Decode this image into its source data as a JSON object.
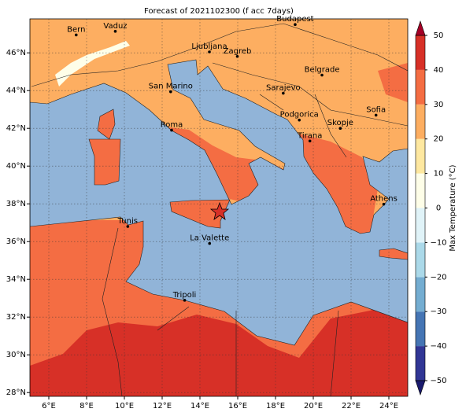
{
  "map": {
    "title": "Forecast of 2021102300 (f acc 7days)",
    "xlim": [
      5,
      25
    ],
    "ylim": [
      27.8,
      47.8
    ],
    "xticks": [
      {
        "value": 6,
        "label": "6°E"
      },
      {
        "value": 8,
        "label": "8°E"
      },
      {
        "value": 10,
        "label": "10°E"
      },
      {
        "value": 12,
        "label": "12°E"
      },
      {
        "value": 14,
        "label": "14°E"
      },
      {
        "value": 16,
        "label": "16°E"
      },
      {
        "value": 18,
        "label": "18°E"
      },
      {
        "value": 20,
        "label": "20°E"
      },
      {
        "value": 22,
        "label": "22°E"
      },
      {
        "value": 24,
        "label": "24°E"
      }
    ],
    "yticks": [
      {
        "value": 28,
        "label": "28°N"
      },
      {
        "value": 30,
        "label": "30°N"
      },
      {
        "value": 32,
        "label": "32°N"
      },
      {
        "value": 34,
        "label": "34°N"
      },
      {
        "value": 36,
        "label": "36°N"
      },
      {
        "value": 38,
        "label": "38°N"
      },
      {
        "value": 40,
        "label": "40°N"
      },
      {
        "value": 42,
        "label": "42°N"
      },
      {
        "value": 44,
        "label": "44°N"
      },
      {
        "value": 46,
        "label": "46°N"
      }
    ],
    "grid": true,
    "cities": [
      {
        "name": "Bern",
        "lon": 7.45,
        "lat": 46.95
      },
      {
        "name": "Vaduz",
        "lon": 9.52,
        "lat": 47.14
      },
      {
        "name": "Budapest",
        "lon": 19.04,
        "lat": 47.5
      },
      {
        "name": "Ljubljana",
        "lon": 14.5,
        "lat": 46.05
      },
      {
        "name": "Zagreb",
        "lon": 15.98,
        "lat": 45.81
      },
      {
        "name": "Belgrade",
        "lon": 20.46,
        "lat": 44.82
      },
      {
        "name": "San Marino",
        "lon": 12.45,
        "lat": 43.94
      },
      {
        "name": "Sarajevo",
        "lon": 18.41,
        "lat": 43.86
      },
      {
        "name": "Roma",
        "lon": 12.5,
        "lat": 41.9
      },
      {
        "name": "Podgorica",
        "lon": 19.26,
        "lat": 42.44
      },
      {
        "name": "Sofia",
        "lon": 23.32,
        "lat": 42.7
      },
      {
        "name": "Skopje",
        "lon": 21.43,
        "lat": 42.0
      },
      {
        "name": "Tirana",
        "lon": 19.82,
        "lat": 41.33
      },
      {
        "name": "Athens",
        "lon": 23.73,
        "lat": 37.98
      },
      {
        "name": "Tunis",
        "lon": 10.18,
        "lat": 36.8
      },
      {
        "name": "La Valette",
        "lon": 14.51,
        "lat": 35.9
      },
      {
        "name": "Tripoli",
        "lon": 13.19,
        "lat": 32.89
      }
    ],
    "colorbar": {
      "label": "Max Temperature (°C)",
      "lim": [
        -50,
        50
      ],
      "ticks": [
        {
          "value": -50,
          "label": "−50"
        },
        {
          "value": -40,
          "label": "−40"
        },
        {
          "value": -30,
          "label": "−30"
        },
        {
          "value": -20,
          "label": "−20"
        },
        {
          "value": -10,
          "label": "−10"
        },
        0,
        10,
        20,
        30,
        40,
        50
      ],
      "colors": [
        "#313695",
        "#4575b4",
        "#74add1",
        "#abd9e9",
        "#e0f3f8",
        "#fefee8",
        "#fee8a0",
        "#fdae61",
        "#f46d43",
        "#d73027"
      ],
      "extend_colors": [
        "#1a1a6e",
        "#a50026"
      ]
    }
  }
}
